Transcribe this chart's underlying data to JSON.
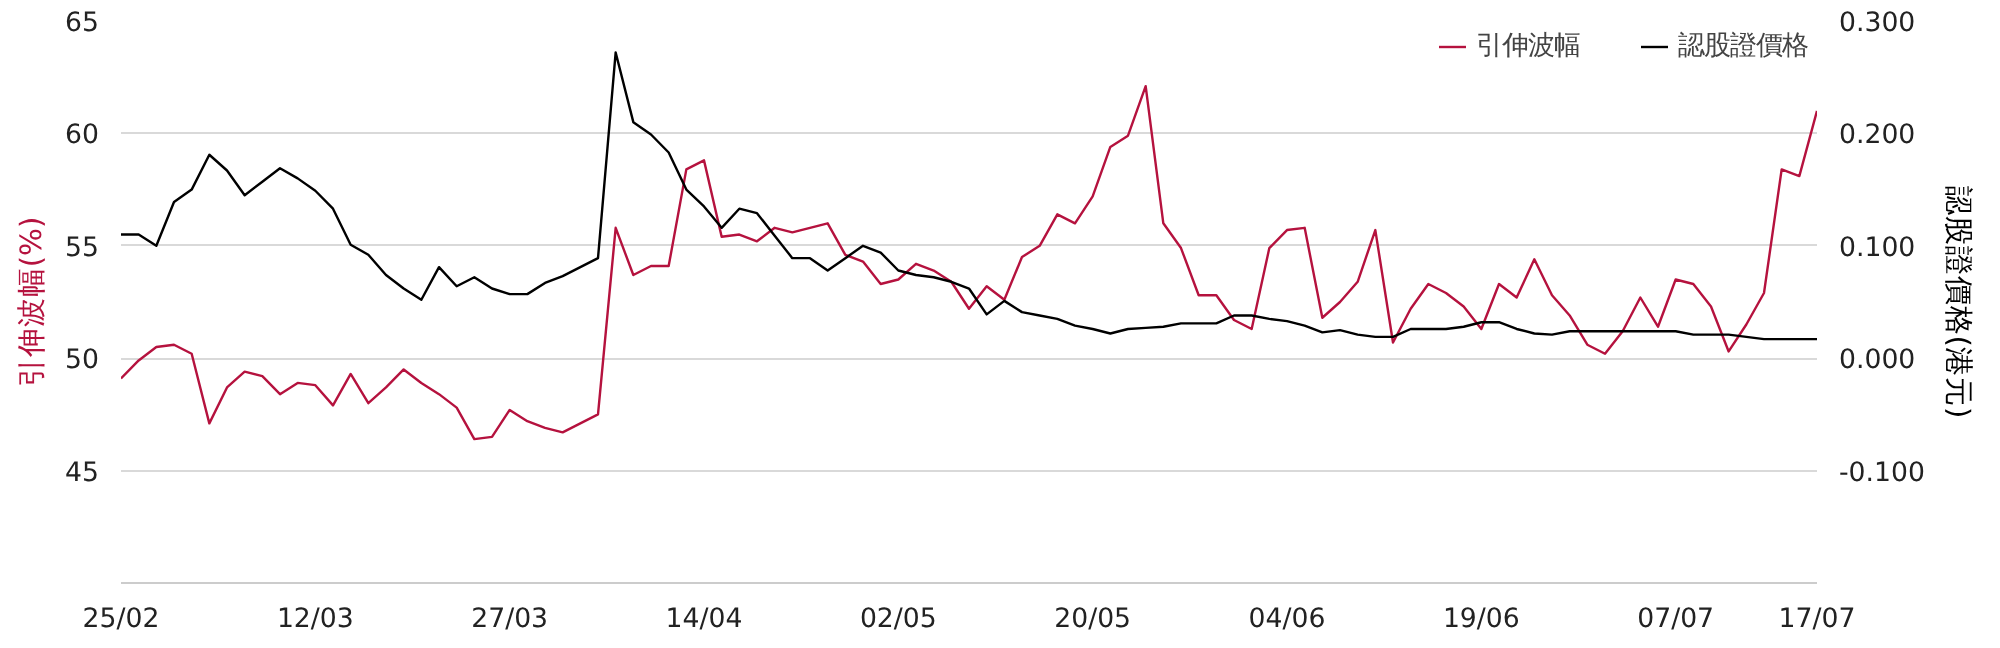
{
  "chart_data": {
    "type": "line",
    "categories": [
      "25/02",
      null,
      null,
      null,
      null,
      null,
      null,
      null,
      null,
      null,
      null,
      "12/03",
      null,
      null,
      null,
      null,
      null,
      null,
      null,
      null,
      null,
      null,
      "27/03",
      null,
      null,
      null,
      null,
      null,
      null,
      null,
      null,
      null,
      null,
      "14/04",
      null,
      null,
      null,
      null,
      null,
      null,
      null,
      null,
      null,
      null,
      "02/05",
      null,
      null,
      null,
      null,
      null,
      null,
      null,
      null,
      null,
      null,
      "20/05",
      null,
      null,
      null,
      null,
      null,
      null,
      null,
      null,
      null,
      null,
      "04/06",
      null,
      null,
      null,
      null,
      null,
      null,
      null,
      null,
      null,
      null,
      "19/06",
      null,
      null,
      null,
      null,
      null,
      null,
      null,
      null,
      null,
      null,
      "07/07",
      null,
      null,
      null,
      null,
      null,
      null,
      null,
      "17/07"
    ],
    "series": [
      {
        "name": "引伸波幅",
        "color": "#b5123e",
        "values": [
          49.1,
          49.9,
          50.5,
          50.6,
          50.2,
          47.1,
          48.7,
          49.4,
          49.2,
          48.4,
          48.9,
          48.8,
          47.9,
          49.3,
          48.0,
          48.7,
          49.5,
          48.9,
          48.4,
          47.8,
          46.4,
          46.5,
          47.7,
          47.2,
          46.9,
          46.7,
          47.1,
          47.5,
          55.8,
          53.7,
          54.1,
          54.1,
          58.4,
          58.8,
          55.4,
          55.5,
          55.2,
          55.8,
          55.6,
          55.8,
          56.0,
          54.6,
          54.3,
          53.3,
          53.5,
          54.2,
          53.9,
          53.4,
          52.2,
          53.2,
          52.6,
          54.5,
          55.0,
          56.4,
          56.0,
          57.2,
          59.4,
          59.9,
          62.1,
          56.0,
          54.9,
          52.8,
          52.8,
          51.7,
          51.3,
          54.9,
          55.7,
          55.8,
          51.8,
          52.5,
          53.4,
          55.7,
          50.7,
          52.2,
          53.3,
          52.9,
          52.3,
          51.3,
          53.3,
          52.7,
          54.4,
          52.8,
          51.9,
          50.6,
          50.2,
          51.2,
          52.7,
          51.4,
          53.5,
          53.3,
          52.3,
          50.3,
          51.5,
          52.9,
          58.4,
          58.1,
          61.0
        ]
      },
      {
        "name": "認股證價格",
        "color": "#000000",
        "axis": "y2",
        "values": [
          0.11,
          0.11,
          0.1,
          0.139,
          0.15,
          0.181,
          0.167,
          0.145,
          0.157,
          0.169,
          0.16,
          0.149,
          0.133,
          0.101,
          0.092,
          0.074,
          0.062,
          0.052,
          0.081,
          0.064,
          0.072,
          0.062,
          0.057,
          0.057,
          0.067,
          0.073,
          0.081,
          0.089,
          0.272,
          0.21,
          0.199,
          0.183,
          0.15,
          0.135,
          0.116,
          0.133,
          0.129,
          0.109,
          0.089,
          0.089,
          0.078,
          0.089,
          0.1,
          0.094,
          0.078,
          0.074,
          0.072,
          0.068,
          0.062,
          0.039,
          0.051,
          0.041,
          0.038,
          0.035,
          0.029,
          0.026,
          0.022,
          0.026,
          0.027,
          0.028,
          0.031,
          0.031,
          0.031,
          0.038,
          0.038,
          0.035,
          0.033,
          0.029,
          0.023,
          0.025,
          0.021,
          0.019,
          0.019,
          0.026,
          0.026,
          0.026,
          0.028,
          0.032,
          0.032,
          0.026,
          0.022,
          0.021,
          0.024,
          0.024,
          0.024,
          0.024,
          0.024,
          0.024,
          0.024,
          0.021,
          0.021,
          0.021,
          0.019,
          0.017,
          0.017,
          0.017,
          0.017
        ]
      }
    ],
    "ylabel": "引伸波幅(%)",
    "y2label": "認股證價格(港元)",
    "ylim": [
      40,
      65
    ],
    "yticks": [
      45,
      50,
      55,
      60,
      65
    ],
    "y2lim": [
      -0.2,
      0.3
    ],
    "y2ticks": [
      {
        "value": -0.1,
        "label": "-0.100"
      },
      {
        "value": 0,
        "label": "0.000"
      },
      {
        "value": 0.1,
        "label": "0.100"
      },
      {
        "value": 0.2,
        "label": "0.200"
      },
      {
        "value": 0.3,
        "label": "0.300"
      }
    ],
    "grid": "y",
    "legend": "top right",
    "marker": "none",
    "line_style": "solid"
  }
}
